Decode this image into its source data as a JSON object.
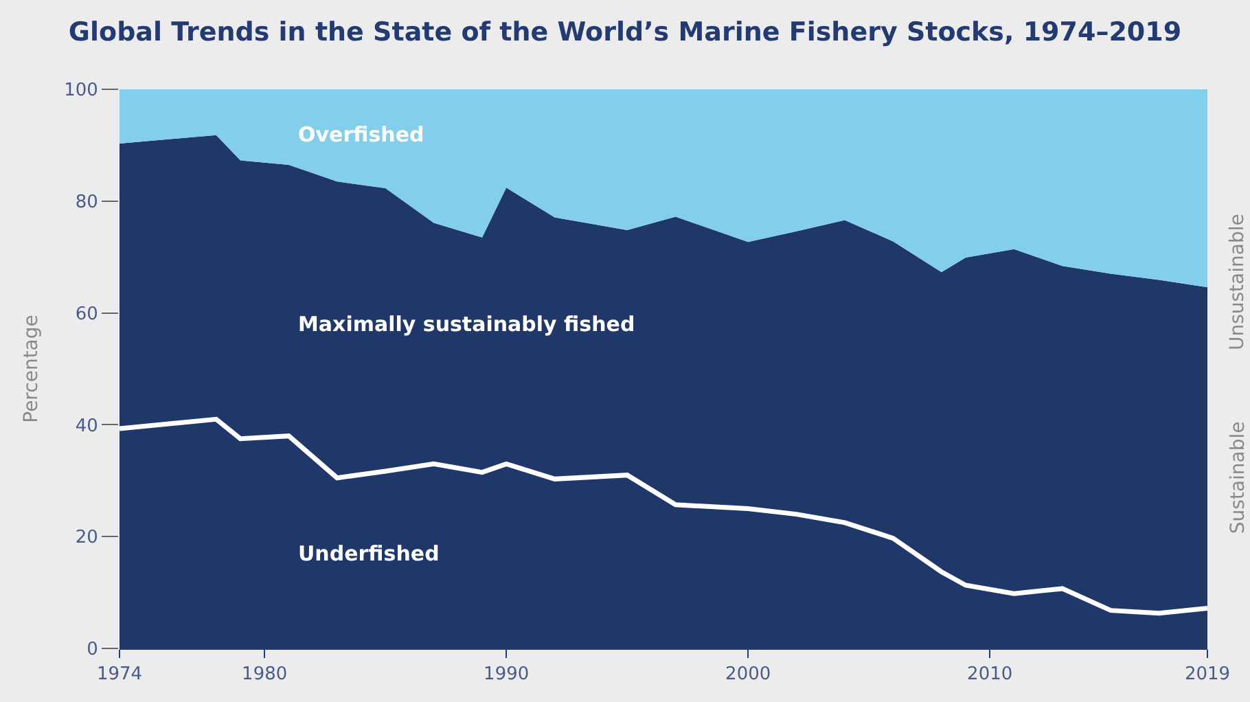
{
  "chart_data": {
    "type": "area",
    "stacked": true,
    "title": "Global Trends in the State of the World’s Marine Fishery Stocks, 1974–2019",
    "ylabel": "Percentage",
    "x": [
      1974,
      1978,
      1979,
      1981,
      1983,
      1985,
      1987,
      1989,
      1990,
      1992,
      1995,
      1997,
      2000,
      2002,
      2004,
      2006,
      2008,
      2009,
      2011,
      2013,
      2015,
      2017,
      2019
    ],
    "series": [
      {
        "name": "Underfished",
        "color": "#1f3769",
        "values": [
          39.3,
          41.0,
          37.5,
          38.0,
          30.5,
          31.7,
          33.0,
          31.5,
          33.0,
          30.3,
          31.0,
          25.7,
          25.0,
          24.0,
          22.5,
          19.7,
          13.7,
          11.3,
          9.8,
          10.7,
          6.8,
          6.3,
          7.2
        ]
      },
      {
        "name": "Maximally sustainably fished",
        "color": "#1f3769",
        "values": [
          51.0,
          50.8,
          49.8,
          48.5,
          53.0,
          50.6,
          43.1,
          42.0,
          49.4,
          46.8,
          43.8,
          51.5,
          47.7,
          50.6,
          54.1,
          53.1,
          53.6,
          58.6,
          61.6,
          57.7,
          60.2,
          59.6,
          57.4
        ]
      },
      {
        "name": "Overfished",
        "color": "#82ceeb",
        "values": [
          9.7,
          8.2,
          12.7,
          13.5,
          16.5,
          17.7,
          23.9,
          26.5,
          17.6,
          22.9,
          25.2,
          22.8,
          27.3,
          25.4,
          23.4,
          27.2,
          32.7,
          30.1,
          28.6,
          31.6,
          33.0,
          34.1,
          35.4
        ]
      }
    ],
    "xlim": [
      1974,
      2019
    ],
    "xticks": [
      1974,
      1980,
      1990,
      2000,
      2010,
      2019
    ],
    "ylim": [
      0,
      100
    ],
    "yticks": [
      0,
      20,
      40,
      60,
      80,
      100
    ],
    "annotations": [
      "Unsustainable",
      "Sustainable"
    ],
    "legend": false
  }
}
